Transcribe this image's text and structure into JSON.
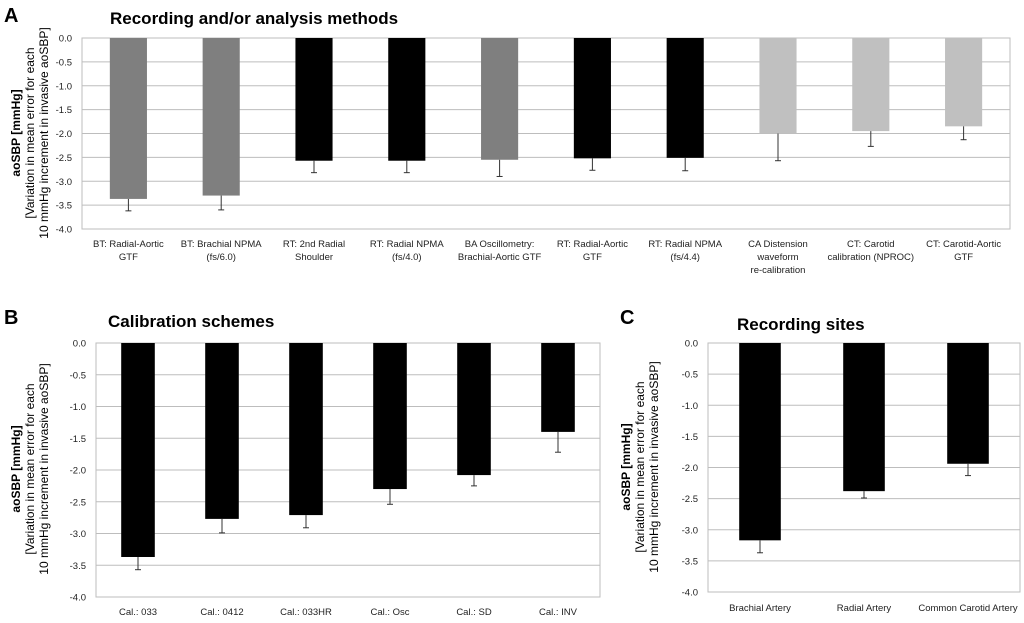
{
  "chart_data": [
    {
      "panel": "A",
      "type": "bar",
      "title": "Recording and/or analysis methods",
      "ylabel_bold": "aoSBP [mmHg]",
      "ylabel_lines": [
        "[Variation in mean error for each",
        "10 mmHg increment in invasive aoSBP]"
      ],
      "ylim": [
        -4.0,
        0.0
      ],
      "yticks": [
        "0.0",
        "-0.5",
        "-1.0",
        "-1.5",
        "-2.0",
        "-2.5",
        "-3.0",
        "-3.5",
        "-4.0"
      ],
      "categories": [
        [
          "BT: Radial-Aortic",
          "GTF"
        ],
        [
          "BT: Brachial NPMA",
          "(fs/6.0)"
        ],
        [
          "RT: 2nd Radial",
          "Shoulder"
        ],
        [
          "RT: Radial NPMA",
          "(fs/4.0)"
        ],
        [
          "BA Oscillometry:",
          "Brachial-Aortic GTF"
        ],
        [
          "RT: Radial-Aortic",
          "GTF"
        ],
        [
          "RT: Radial NPMA",
          "(fs/4.4)"
        ],
        [
          "CA Distension",
          "waveform",
          "re-calibration"
        ],
        [
          "CT: Carotid",
          "calibration (NPROC)"
        ],
        [
          "CT: Carotid-Aortic",
          "GTF"
        ]
      ],
      "values": [
        -3.37,
        -3.3,
        -2.57,
        -2.57,
        -2.55,
        -2.52,
        -2.51,
        -2.0,
        -1.95,
        -1.85
      ],
      "errors": [
        0.25,
        0.3,
        0.25,
        0.25,
        0.35,
        0.25,
        0.27,
        0.57,
        0.32,
        0.28
      ],
      "colors": [
        "#7f7f7f",
        "#7f7f7f",
        "#000000",
        "#000000",
        "#7f7f7f",
        "#000000",
        "#000000",
        "#c0c0c0",
        "#c0c0c0",
        "#c0c0c0"
      ]
    },
    {
      "panel": "B",
      "type": "bar",
      "title": "Calibration schemes",
      "ylabel_bold": "aoSBP [mmHg]",
      "ylabel_lines": [
        "[Variation in mean error for each",
        "10 mmHg increment in invasive aoSBP]"
      ],
      "ylim": [
        -4.0,
        0.0
      ],
      "yticks": [
        "0.0",
        "-0.5",
        "-1.0",
        "-1.5",
        "-2.0",
        "-2.5",
        "-3.0",
        "-3.5",
        "-4.0"
      ],
      "categories": [
        [
          "Cal.: 033"
        ],
        [
          "Cal.: 0412"
        ],
        [
          "Cal.: 033HR"
        ],
        [
          "Cal.: Osc"
        ],
        [
          "Cal.: SD"
        ],
        [
          "Cal.: INV"
        ]
      ],
      "values": [
        -3.37,
        -2.77,
        -2.71,
        -2.3,
        -2.08,
        -1.4
      ],
      "errors": [
        0.2,
        0.22,
        0.2,
        0.24,
        0.17,
        0.32
      ],
      "colors": [
        "#000000",
        "#000000",
        "#000000",
        "#000000",
        "#000000",
        "#000000"
      ]
    },
    {
      "panel": "C",
      "type": "bar",
      "title": "Recording sites",
      "ylabel_bold": "aoSBP [mmHg]",
      "ylabel_lines": [
        "[Variation in mean error for each",
        "10 mmHg increment in invasive aoSBP]"
      ],
      "ylim": [
        -4.0,
        0.0
      ],
      "yticks": [
        "0.0",
        "-0.5",
        "-1.0",
        "-1.5",
        "-2.0",
        "-2.5",
        "-3.0",
        "-3.5",
        "-4.0"
      ],
      "categories": [
        [
          "Brachial Artery"
        ],
        [
          "Radial Artery"
        ],
        [
          "Common Carotid Artery"
        ]
      ],
      "values": [
        -3.17,
        -2.38,
        -1.94
      ],
      "errors": [
        0.2,
        0.11,
        0.19
      ],
      "colors": [
        "#000000",
        "#000000",
        "#000000"
      ]
    }
  ]
}
